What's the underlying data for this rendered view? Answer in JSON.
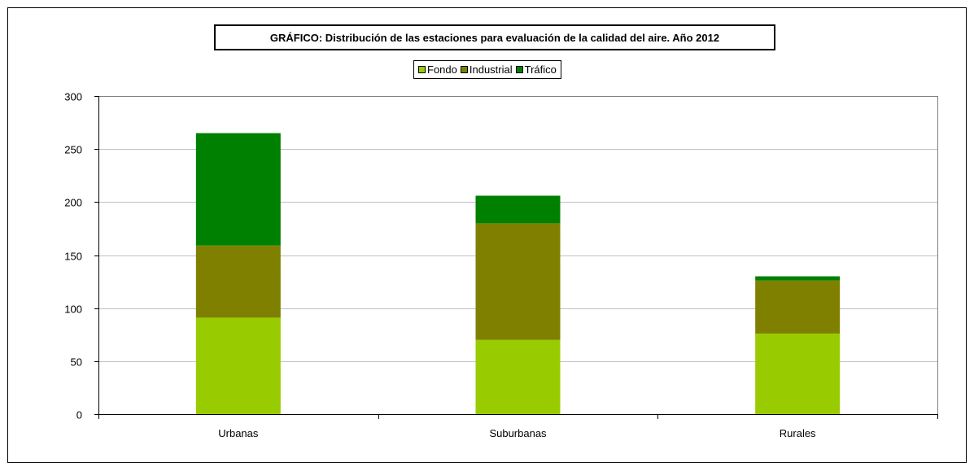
{
  "chart_data": {
    "type": "bar",
    "stacked": true,
    "title": "GRÁFICO: Distribución de las estaciones para evaluación de la calidad del aire. Año 2012",
    "categories": [
      "Urbanas",
      "Suburbanas",
      "Rurales"
    ],
    "series": [
      {
        "name": "Fondo",
        "color": "#99cc00",
        "values": [
          91,
          70,
          76
        ]
      },
      {
        "name": "Industrial",
        "color": "#808000",
        "values": [
          68,
          110,
          50
        ]
      },
      {
        "name": "Tráfico",
        "color": "#008000",
        "values": [
          106,
          26,
          4
        ]
      }
    ],
    "ylim": [
      0,
      300
    ],
    "yticks": [
      "0",
      "50",
      "100",
      "150",
      "200",
      "250",
      "300"
    ],
    "grid": true,
    "legend_position": "top-center"
  }
}
